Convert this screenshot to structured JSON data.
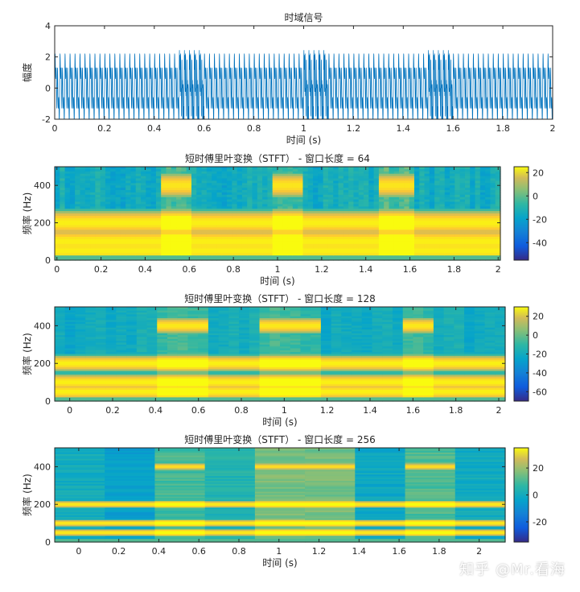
{
  "chart_data": [
    {
      "type": "line",
      "title": "时域信号",
      "xlabel": "时间 (s)",
      "ylabel": "幅度",
      "xlim": [
        0,
        2
      ],
      "ylim": [
        -2,
        4
      ],
      "xticks": [
        "0",
        "0.2",
        "0.4",
        "0.6",
        "0.8",
        "1",
        "1.2",
        "1.4",
        "1.6",
        "1.8",
        "2"
      ],
      "yticks": [
        "-2",
        "0",
        "2",
        "4"
      ],
      "color": "#0072BD",
      "signal": {
        "base_components_hz": [
          50,
          100,
          200
        ],
        "base_amplitude": [
          1,
          1,
          1
        ],
        "burst_frequency_hz": 400,
        "burst_intervals_s": [
          [
            0.5,
            0.6
          ],
          [
            1.0,
            1.1
          ],
          [
            1.5,
            1.6
          ]
        ]
      }
    },
    {
      "type": "heatmap",
      "title": "短时傅里叶变换（STFT） - 窗口长度 = 64",
      "xlabel": "时间 (s)",
      "ylabel": "频率 (Hz)",
      "xlim": [
        -0.01,
        2.01
      ],
      "ylim": [
        0,
        500
      ],
      "xticks": [
        "0",
        "0.2",
        "0.4",
        "0.6",
        "0.8",
        "1",
        "1.2",
        "1.4",
        "1.6",
        "1.8",
        "2"
      ],
      "yticks": [
        "0",
        "200",
        "400"
      ],
      "colorbar": {
        "ticks": [
          "20",
          "0",
          "-20",
          "-40"
        ],
        "range": [
          -55,
          25
        ]
      },
      "bands_hz": [
        50,
        100,
        200
      ],
      "burst_hz": 400,
      "burst_intervals_s": [
        [
          0.47,
          0.62
        ],
        [
          0.97,
          1.12
        ],
        [
          1.47,
          1.62
        ]
      ]
    },
    {
      "type": "heatmap",
      "title": "短时傅里叶变换（STFT） - 窗口长度 = 128",
      "xlabel": "时间 (s)",
      "ylabel": "频率 (Hz)",
      "xlim": [
        -0.07,
        2.03
      ],
      "ylim": [
        0,
        500
      ],
      "xticks": [
        "0",
        "0.2",
        "0.4",
        "0.6",
        "0.8",
        "1",
        "1.2",
        "1.4",
        "1.6",
        "1.8",
        "2"
      ],
      "yticks": [
        "0",
        "200",
        "400"
      ],
      "colorbar": {
        "ticks": [
          "20",
          "0",
          "-20",
          "-40",
          "-60"
        ],
        "range": [
          -70,
          30
        ]
      },
      "bands_hz": [
        50,
        100,
        200
      ],
      "burst_hz": 400,
      "burst_intervals_s": [
        [
          0.4,
          0.65
        ],
        [
          0.87,
          1.15
        ],
        [
          1.54,
          1.7
        ]
      ]
    },
    {
      "type": "heatmap",
      "title": "短时傅里叶变换（STFT） - 窗口长度 = 256",
      "xlabel": "时间 (s)",
      "ylabel": "频率 (Hz)",
      "xlim": [
        -0.12,
        2.13
      ],
      "ylim": [
        0,
        500
      ],
      "xticks": [
        "0",
        "0.2",
        "0.4",
        "0.6",
        "0.8",
        "1",
        "1.2",
        "1.4",
        "1.6",
        "1.8",
        "2"
      ],
      "yticks": [
        "0",
        "200",
        "400"
      ],
      "colorbar": {
        "ticks": [
          "20",
          "0",
          "-20"
        ],
        "range": [
          -35,
          35
        ]
      },
      "bands_hz": [
        50,
        100,
        200
      ],
      "burst_hz": 400,
      "burst_intervals_s": [
        [
          0.38,
          0.63
        ],
        [
          0.88,
          1.38
        ],
        [
          1.63,
          1.88
        ]
      ]
    }
  ],
  "watermark": "知乎 @Mr.看海"
}
